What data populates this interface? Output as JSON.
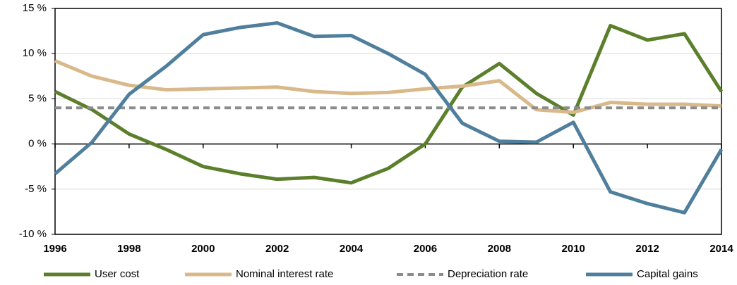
{
  "chart_data": {
    "type": "line",
    "x": [
      1996,
      1997,
      1998,
      1999,
      2000,
      2001,
      2002,
      2003,
      2004,
      2005,
      2006,
      2007,
      2008,
      2009,
      2010,
      2011,
      2012,
      2013,
      2014
    ],
    "xlim": [
      1996,
      2014
    ],
    "xticks": [
      1996,
      1998,
      2000,
      2002,
      2004,
      2006,
      2008,
      2010,
      2012,
      2014
    ],
    "ylim": [
      -10,
      15
    ],
    "yticks": [
      {
        "value": -10,
        "label": "-10 %"
      },
      {
        "value": -5,
        "label": "-5 %"
      },
      {
        "value": 0,
        "label": "0 %"
      },
      {
        "value": 5,
        "label": "5 %"
      },
      {
        "value": 10,
        "label": "10 %"
      },
      {
        "value": 15,
        "label": "15 %"
      }
    ],
    "grid": true,
    "legend": "bottom",
    "series": [
      {
        "name": "User cost",
        "color": "#5b7f2b",
        "dashed": false,
        "values": [
          5.8,
          3.8,
          1.1,
          -0.6,
          -2.5,
          -3.3,
          -3.9,
          -3.7,
          -4.3,
          -2.7,
          0.0,
          6.3,
          8.9,
          5.6,
          3.2,
          13.1,
          11.5,
          12.2,
          5.8
        ]
      },
      {
        "name": "Nominal interest rate",
        "color": "#d9b88a",
        "dashed": false,
        "values": [
          9.2,
          7.5,
          6.5,
          6.0,
          6.1,
          6.2,
          6.3,
          5.8,
          5.6,
          5.7,
          6.1,
          6.4,
          7.0,
          3.8,
          3.5,
          4.6,
          4.4,
          4.4,
          4.2
        ]
      },
      {
        "name": "Depreciation rate",
        "color": "#8c8c8c",
        "dashed": true,
        "values": [
          4.0,
          4.0,
          4.0,
          4.0,
          4.0,
          4.0,
          4.0,
          4.0,
          4.0,
          4.0,
          4.0,
          4.0,
          4.0,
          4.0,
          4.0,
          4.0,
          4.0,
          4.0,
          4.0
        ]
      },
      {
        "name": "Capital gains",
        "color": "#4f7f9c",
        "dashed": false,
        "values": [
          -3.3,
          0.2,
          5.5,
          8.6,
          12.1,
          12.9,
          13.4,
          11.9,
          12.0,
          10.0,
          7.7,
          2.3,
          0.3,
          0.2,
          2.4,
          -5.3,
          -6.6,
          -7.6,
          -0.6
        ]
      }
    ]
  }
}
